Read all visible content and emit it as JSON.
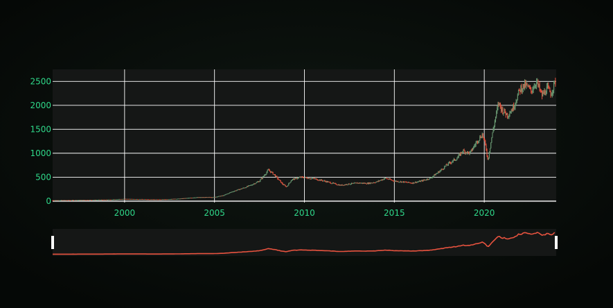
{
  "page": {
    "background_color": "#0a0f0c",
    "plot_background_color": "#151716",
    "grid_color": "#ffffff",
    "tick_label_color": "#2fd98a"
  },
  "chart_data": {
    "type": "candlestick",
    "title": "",
    "xlabel": "",
    "ylabel": "",
    "grid": true,
    "legend": "none",
    "x_start_year": 1996,
    "x_end_year": 2024,
    "xlim": [
      1996.0,
      2024.0
    ],
    "ylim": [
      -30,
      2750
    ],
    "x_ticks": [
      2000,
      2005,
      2010,
      2015,
      2020
    ],
    "x_tick_labels": [
      "2000",
      "2005",
      "2010",
      "2015",
      "2020"
    ],
    "y_ticks": [
      0,
      500,
      1000,
      1500,
      2000,
      2500
    ],
    "y_tick_labels": [
      "0",
      "500",
      "1000",
      "1500",
      "2000",
      "2500"
    ],
    "increasing_color": "#6a9a73",
    "decreasing_color": "#e8533f",
    "series": [
      {
        "points": [
          [
            1996.0,
            18
          ],
          [
            1997.0,
            20
          ],
          [
            1998.0,
            25
          ],
          [
            1999.0,
            30
          ],
          [
            2000.0,
            45
          ],
          [
            2001.0,
            40
          ],
          [
            2002.0,
            35
          ],
          [
            2003.0,
            50
          ],
          [
            2004.0,
            80
          ],
          [
            2005.0,
            85
          ],
          [
            2005.5,
            120
          ],
          [
            2006.0,
            200
          ],
          [
            2006.5,
            260
          ],
          [
            2007.0,
            330
          ],
          [
            2007.5,
            420
          ],
          [
            2008.0,
            650
          ],
          [
            2008.3,
            560
          ],
          [
            2008.8,
            350
          ],
          [
            2009.0,
            300
          ],
          [
            2009.3,
            450
          ],
          [
            2009.8,
            500
          ],
          [
            2010.5,
            470
          ],
          [
            2011.0,
            430
          ],
          [
            2011.5,
            380
          ],
          [
            2012.0,
            330
          ],
          [
            2012.5,
            360
          ],
          [
            2013.0,
            380
          ],
          [
            2013.5,
            370
          ],
          [
            2014.0,
            400
          ],
          [
            2014.5,
            480
          ],
          [
            2015.0,
            420
          ],
          [
            2015.5,
            400
          ],
          [
            2016.0,
            380
          ],
          [
            2016.5,
            420
          ],
          [
            2017.0,
            480
          ],
          [
            2017.5,
            620
          ],
          [
            2018.0,
            780
          ],
          [
            2018.5,
            900
          ],
          [
            2018.8,
            1050
          ],
          [
            2019.2,
            1000
          ],
          [
            2019.6,
            1250
          ],
          [
            2019.9,
            1400
          ],
          [
            2020.1,
            1100
          ],
          [
            2020.2,
            850
          ],
          [
            2020.4,
            1300
          ],
          [
            2020.6,
            1700
          ],
          [
            2020.8,
            2050
          ],
          [
            2021.0,
            1900
          ],
          [
            2021.3,
            1800
          ],
          [
            2021.6,
            1950
          ],
          [
            2021.8,
            2150
          ],
          [
            2022.0,
            2350
          ],
          [
            2022.3,
            2420
          ],
          [
            2022.6,
            2300
          ],
          [
            2022.9,
            2500
          ],
          [
            2023.2,
            2200
          ],
          [
            2023.5,
            2350
          ],
          [
            2023.7,
            2250
          ],
          [
            2023.9,
            2450
          ],
          [
            2024.0,
            2520
          ]
        ]
      }
    ]
  }
}
